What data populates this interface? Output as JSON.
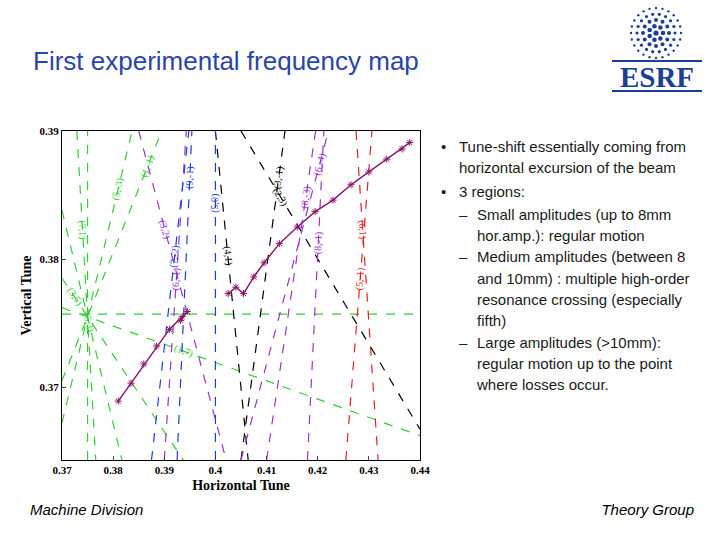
{
  "slide": {
    "title": "First experimental frequency map",
    "logo": "ESRF",
    "bullets": [
      {
        "text": "Tune-shift essentially coming from horizontal excursion of the beam",
        "sub": []
      },
      {
        "text": "3 regions:",
        "sub": [
          "Small amplitudes (up to 8mm hor.amp.): regular motion",
          "Medium amplitudes (between 8 and 10mm) : multiple high-order resonance crossing (especially fifth)",
          "Large amplitudes (>10mm): regular motion up to the point where losses occur."
        ]
      }
    ],
    "footer_left": "Machine Division",
    "footer_right": "Theory Group"
  },
  "chart_data": {
    "type": "line",
    "xlabel": "Horizontal Tune",
    "ylabel": "Vertical Tune",
    "xlim": [
      0.37,
      0.44
    ],
    "ylim": [
      0.3643,
      0.39
    ],
    "xticks": [
      0.37,
      0.38,
      0.39,
      0.4,
      0.41,
      0.42,
      0.43,
      0.44
    ],
    "yticks": [
      0.37,
      0.38,
      0.39
    ],
    "grid": false,
    "series": [
      {
        "color": "#33cc33",
        "line_style": "dash",
        "x": [
          0.37,
          0.44
        ],
        "y": [
          0.3757,
          0.3757
        ]
      },
      {
        "color": "#33cc33",
        "line_style": "dash",
        "x": [
          0.375,
          0.375
        ],
        "y": [
          0.3643,
          0.39
        ]
      },
      {
        "name": "(1,-1)",
        "color": "#33cc33",
        "line_style": "dash",
        "x": [
          0.37,
          0.3895
        ],
        "y": [
          0.3705,
          0.39
        ]
      },
      {
        "name": "(7,1)",
        "color": "#33cc33",
        "line_style": "dash",
        "x": [
          0.3729,
          0.3766
        ],
        "y": [
          0.39,
          0.3643
        ]
      },
      {
        "name": "(5,3)",
        "color": "#33cc33",
        "line_style": "dash",
        "x": [
          0.37,
          0.3817
        ],
        "y": [
          0.3838,
          0.3643
        ]
      },
      {
        "name": "(3,5)",
        "color": "#33cc33",
        "line_style": "dash",
        "x": [
          0.37,
          0.3937
        ],
        "y": [
          0.3785,
          0.3643
        ]
      },
      {
        "name": "(1,7)",
        "color": "#33cc33",
        "line_style": "dash",
        "x": [
          0.37,
          0.44
        ],
        "y": [
          0.3762,
          0.3662
        ]
      },
      {
        "name": "(5,-3)",
        "color": "#33cc33",
        "line_style": "dash",
        "x": [
          0.37,
          0.3837
        ],
        "y": [
          0.3672,
          0.39
        ]
      },
      {
        "name": "(2,3)",
        "color": "#000000",
        "line_style": "dash",
        "x": [
          0.405,
          0.44
        ],
        "y": [
          0.39,
          0.3667
        ]
      },
      {
        "name": "(4,1)",
        "color": "#000000",
        "line_style": "dash",
        "x": [
          0.4,
          0.4064
        ],
        "y": [
          0.39,
          0.3643
        ]
      },
      {
        "name": "(3,-1)",
        "color": "#000000",
        "line_style": "dash",
        "x": [
          0.405,
          0.4136
        ],
        "y": [
          0.3643,
          0.39
        ]
      },
      {
        "name": "(3,2)",
        "color": "#9933cc",
        "line_style": "dash",
        "x": [
          0.385,
          0.4021
        ],
        "y": [
          0.39,
          0.3643
        ]
      },
      {
        "name": "(6,-1)",
        "color": "#9933cc",
        "line_style": "dash",
        "x": [
          0.39,
          0.3943
        ],
        "y": [
          0.3643,
          0.39
        ]
      },
      {
        "name": "(6,-4)",
        "color": "#9933cc",
        "line_style": "dash",
        "x": [
          0.405,
          0.4221
        ],
        "y": [
          0.3643,
          0.39
        ]
      },
      {
        "name": "(8,-1)",
        "color": "#9933cc",
        "line_style": "dash",
        "x": [
          0.418,
          0.4212
        ],
        "y": [
          0.3643,
          0.39
        ]
      },
      {
        "name": "(8,-3)",
        "color": "#9933cc",
        "line_style": "dash",
        "x": [
          0.41,
          0.4196
        ],
        "y": [
          0.3643,
          0.39
        ]
      },
      {
        "name": "(5,0)",
        "color": "#1a3fd9",
        "line_style": "dash",
        "x": [
          0.4,
          0.4
        ],
        "y": [
          0.3643,
          0.39
        ]
      },
      {
        "name": "(7,-2)",
        "color": "#1a3fd9",
        "line_style": "dash",
        "x": [
          0.3875,
          0.3948
        ],
        "y": [
          0.3643,
          0.39
        ]
      },
      {
        "name": "(9,-1)",
        "color": "#1a3fd9",
        "line_style": "dash",
        "x": [
          0.3925,
          0.3954
        ],
        "y": [
          0.3643,
          0.39
        ]
      },
      {
        "name": "(6,1)",
        "color": "#e62020",
        "line_style": "dash",
        "x": [
          0.4275,
          0.4318
        ],
        "y": [
          0.39,
          0.3643
        ]
      },
      {
        "name": "(5,-1)",
        "color": "#e62020",
        "line_style": "dash",
        "x": [
          0.4255,
          0.4306
        ],
        "y": [
          0.3643,
          0.39
        ]
      },
      {
        "color": "#8b1a6b",
        "line_style": "solid",
        "marker": "asterisk",
        "x": [
          0.381,
          0.3835,
          0.386,
          0.3885,
          0.391,
          0.3935,
          0.3945,
          0.3932,
          null,
          0.4025,
          0.404,
          0.4055,
          0.4075,
          0.4095,
          0.4125,
          0.416,
          0.4195,
          0.423,
          0.4265,
          0.43,
          0.4335,
          0.4365,
          0.438
        ],
        "y": [
          0.3689,
          0.3703,
          0.3718,
          0.3732,
          0.3745,
          0.3755,
          0.3759,
          0.3752,
          null,
          0.3773,
          0.3778,
          0.3773,
          0.3786,
          0.3797,
          0.3812,
          0.3825,
          0.3837,
          0.3846,
          0.3858,
          0.3868,
          0.3878,
          0.3886,
          0.3891
        ]
      }
    ]
  }
}
